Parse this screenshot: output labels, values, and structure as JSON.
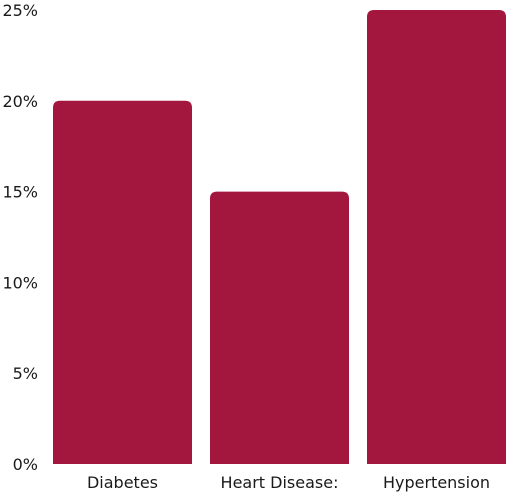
{
  "chart_data": {
    "type": "bar",
    "categories": [
      "Diabetes",
      "Heart Disease:",
      "Hypertension"
    ],
    "values": [
      20,
      15,
      25
    ],
    "ylim": [
      0,
      25
    ],
    "yticks": [
      "0%",
      "5%",
      "10%",
      "15%",
      "20%",
      "25%"
    ],
    "ytick_values": [
      0,
      5,
      10,
      15,
      20,
      25
    ],
    "title": "",
    "xlabel": "",
    "ylabel": "",
    "grid": false,
    "legend": "none",
    "bar_color": "#a3173f"
  }
}
